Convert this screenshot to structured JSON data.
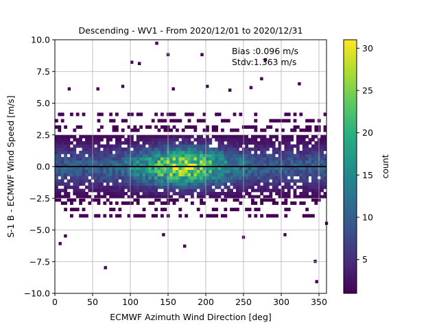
{
  "chart_data": {
    "type": "heatmap",
    "title": "Descending - WV1 - From 2020/12/01 to 2020/12/31",
    "xlabel": "ECMWF Azimuth Wind Direction [deg]",
    "ylabel": "S-1 B - ECMWF Wind Speed [m/s]",
    "xlim": [
      0,
      360
    ],
    "ylim": [
      -10,
      10
    ],
    "xticks": [
      "0",
      "50",
      "100",
      "150",
      "200",
      "250",
      "300",
      "350"
    ],
    "yticks": [
      "10.0",
      "7.5",
      "5.0",
      "2.5",
      "0.0",
      "−2.5",
      "−5.0",
      "−7.5",
      "−10.0"
    ],
    "grid": true,
    "reference_line_y": 0,
    "annotations": [
      "Bias :0.096 m/s",
      "Stdv:1.363 m/s"
    ],
    "colorbar": {
      "label": "count",
      "range": [
        1,
        31
      ],
      "ticks": [
        "5",
        "10",
        "15",
        "20",
        "25",
        "30"
      ],
      "colormap": "viridis"
    },
    "density_summary": {
      "core_band_y": [
        -2.5,
        2.5
      ],
      "peak_region_x": [
        140,
        200
      ],
      "peak_region_y": [
        -1,
        1
      ],
      "peak_count": 31
    },
    "outliers": [
      [
        133,
        9.6
      ],
      [
        148,
        8.7
      ],
      [
        193,
        8.7
      ],
      [
        100,
        8.1
      ],
      [
        110,
        8.0
      ],
      [
        277,
        8.3
      ],
      [
        65,
        -8.1
      ],
      [
        343,
        -7.6
      ],
      [
        345,
        -9.2
      ],
      [
        170,
        -6.4
      ],
      [
        142,
        -5.5
      ],
      [
        248,
        -5.7
      ],
      [
        5,
        -6.2
      ],
      [
        12,
        -5.6
      ],
      [
        303,
        -5.5
      ],
      [
        358,
        -4.6
      ],
      [
        55,
        6.0
      ],
      [
        17,
        6.0
      ],
      [
        88,
        6.2
      ],
      [
        155,
        6.0
      ],
      [
        200,
        6.2
      ],
      [
        258,
        6.1
      ],
      [
        322,
        6.4
      ],
      [
        230,
        5.9
      ],
      [
        272,
        6.8
      ]
    ]
  }
}
